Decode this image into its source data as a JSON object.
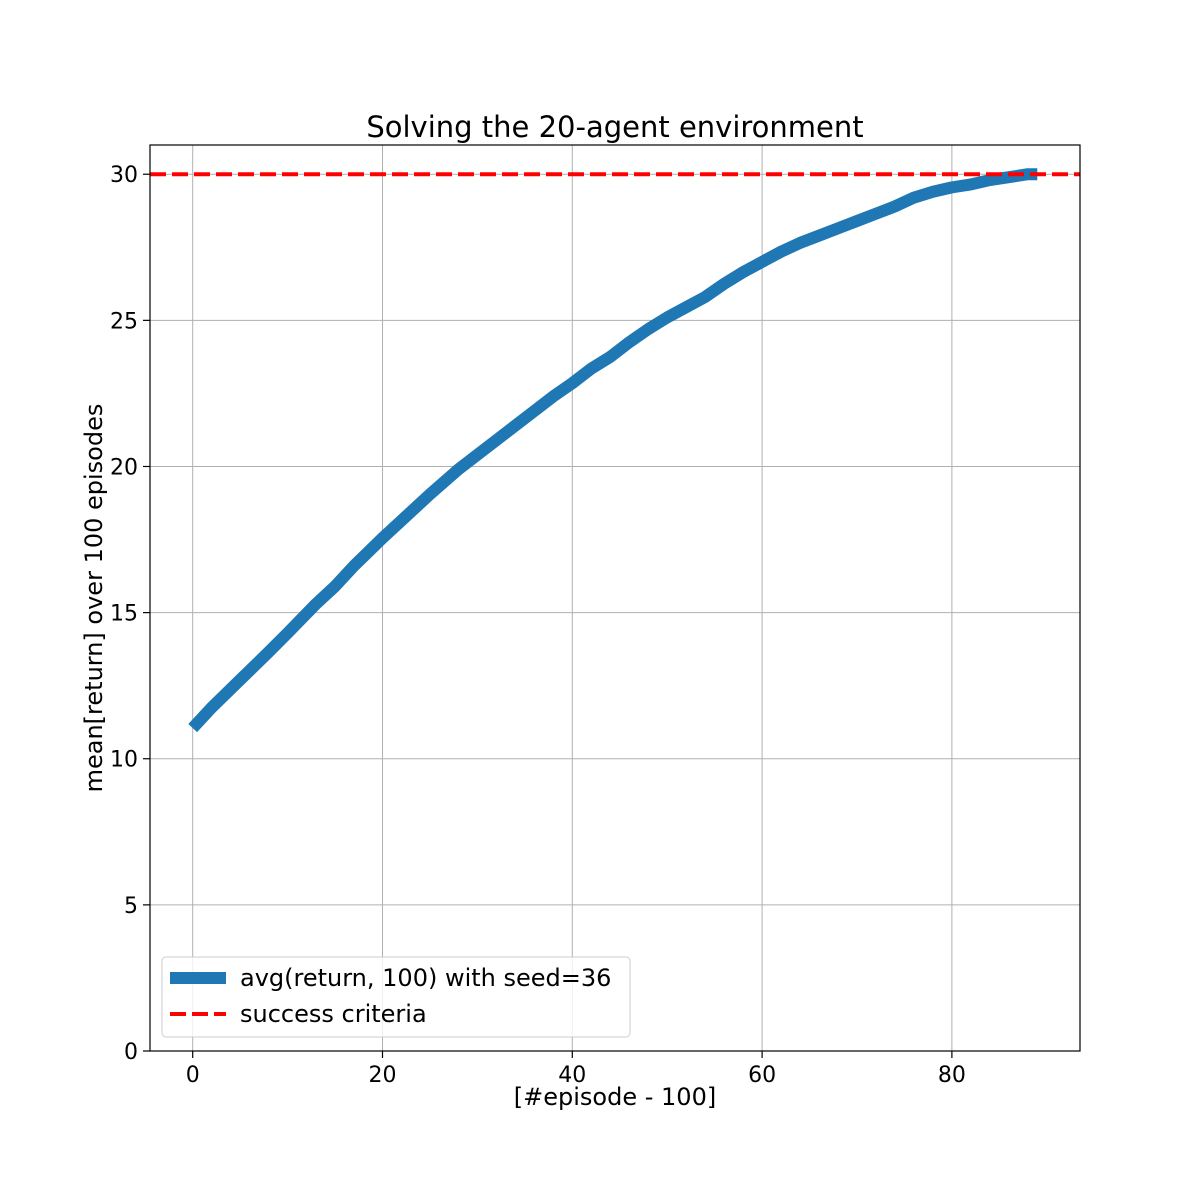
{
  "chart_data": {
    "type": "line",
    "title": "Solving the 20-agent environment",
    "xlabel": "[#episode - 100]",
    "ylabel": "mean[return] over 100 episodes",
    "xlim": [
      -4.5,
      93.5
    ],
    "ylim": [
      0,
      31
    ],
    "xticks": [
      0,
      20,
      40,
      60,
      80
    ],
    "yticks": [
      0,
      5,
      10,
      15,
      20,
      25,
      30
    ],
    "grid": true,
    "legend_position": "lower-left",
    "colors": {
      "series": "#1f77b4",
      "threshold": "#ff0000"
    },
    "series": [
      {
        "name": "avg(return, 100) with seed=36",
        "style": "solid",
        "x": [
          0,
          2,
          5,
          8,
          10,
          13,
          15,
          17,
          20,
          22,
          25,
          28,
          30,
          33,
          35,
          38,
          40,
          42,
          44,
          46,
          48,
          50,
          52,
          54,
          56,
          58,
          60,
          62,
          64,
          66,
          68,
          70,
          72,
          74,
          76,
          78,
          80,
          82,
          84,
          86,
          88,
          89
        ],
        "y": [
          11.05,
          11.75,
          12.7,
          13.65,
          14.3,
          15.3,
          15.9,
          16.6,
          17.55,
          18.15,
          19.05,
          19.9,
          20.4,
          21.15,
          21.65,
          22.4,
          22.85,
          23.35,
          23.75,
          24.25,
          24.7,
          25.1,
          25.45,
          25.8,
          26.25,
          26.65,
          27.0,
          27.35,
          27.65,
          27.9,
          28.15,
          28.4,
          28.65,
          28.9,
          29.2,
          29.4,
          29.55,
          29.65,
          29.8,
          29.9,
          30.0,
          30.0
        ]
      },
      {
        "name": "success criteria",
        "style": "dashed",
        "x": [
          -4.5,
          93.5
        ],
        "y": [
          30,
          30
        ]
      }
    ]
  }
}
